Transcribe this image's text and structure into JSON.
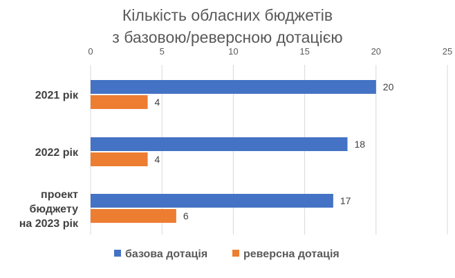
{
  "chart_data": {
    "type": "bar",
    "orientation": "horizontal",
    "title_lines": [
      "Кількість обласних бюджетів",
      "з базовою/реверсною дотацією"
    ],
    "categories": [
      [
        "2021 рік"
      ],
      [
        "2022 рік"
      ],
      [
        "проект",
        "бюджету",
        "на 2023 рік"
      ]
    ],
    "series": [
      {
        "name": "базова дотація",
        "color": "#4472C4",
        "values": [
          20,
          18,
          17
        ]
      },
      {
        "name": "реверсна дотація",
        "color": "#ED7D31",
        "values": [
          4,
          4,
          6
        ]
      }
    ],
    "xlim": [
      0,
      25
    ],
    "ticks": [
      0,
      5,
      10,
      15,
      20,
      25
    ],
    "tick_position": "top",
    "grid": true,
    "legend_position": "bottom",
    "data_labels": true
  }
}
